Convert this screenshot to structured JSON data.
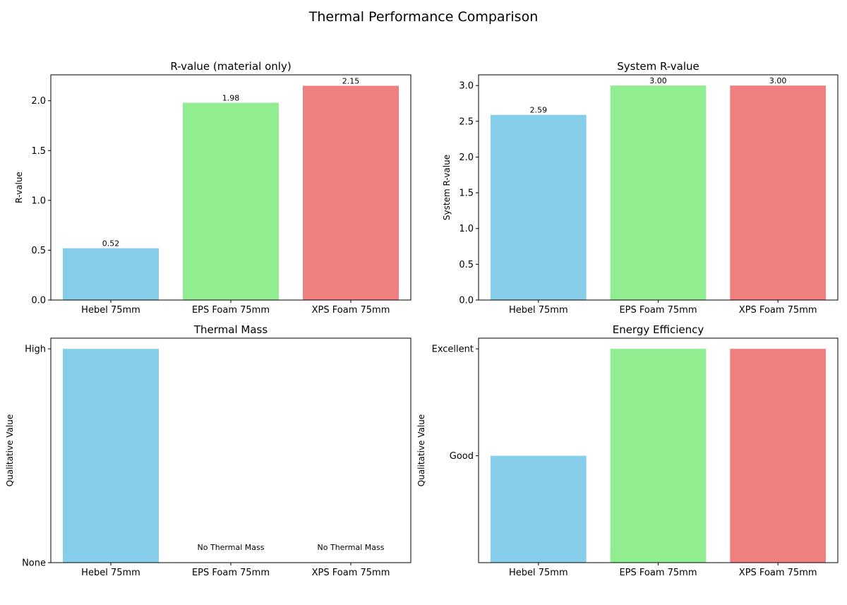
{
  "figure_title": "Thermal Performance Comparison",
  "colors": {
    "hebel": "#87CEEB",
    "eps": "#90EE90",
    "xps": "#F08080",
    "axis": "#000000"
  },
  "chart_data": [
    {
      "type": "bar",
      "title": "R-value (material only)",
      "xlabel": "",
      "ylabel": "R-value",
      "categories": [
        "Hebel 75mm",
        "EPS Foam 75mm",
        "XPS Foam 75mm"
      ],
      "values": [
        0.52,
        1.98,
        2.15
      ],
      "value_labels": [
        "0.52",
        "1.98",
        "2.15"
      ],
      "ylim": [
        0,
        2.26
      ],
      "yticks": [
        0.0,
        0.5,
        1.0,
        1.5,
        2.0
      ],
      "ytick_labels": [
        "0.0",
        "0.5",
        "1.0",
        "1.5",
        "2.0"
      ],
      "bar_colors": [
        "#87CEEB",
        "#90EE90",
        "#F08080"
      ],
      "grid": false,
      "legend": "none"
    },
    {
      "type": "bar",
      "title": "System R-value",
      "xlabel": "",
      "ylabel": "System R-value",
      "categories": [
        "Hebel 75mm",
        "EPS Foam 75mm",
        "XPS Foam 75mm"
      ],
      "values": [
        2.59,
        3.0,
        3.0
      ],
      "value_labels": [
        "2.59",
        "3.00",
        "3.00"
      ],
      "ylim": [
        0,
        3.15
      ],
      "yticks": [
        0.0,
        0.5,
        1.0,
        1.5,
        2.0,
        2.5,
        3.0
      ],
      "ytick_labels": [
        "0.0",
        "0.5",
        "1.0",
        "1.5",
        "2.0",
        "2.5",
        "3.0"
      ],
      "bar_colors": [
        "#87CEEB",
        "#90EE90",
        "#F08080"
      ],
      "grid": false,
      "legend": "none"
    },
    {
      "type": "bar",
      "title": "Thermal Mass",
      "xlabel": "",
      "ylabel": "Qualitative Value",
      "categories": [
        "Hebel 75mm",
        "EPS Foam 75mm",
        "XPS Foam 75mm"
      ],
      "values": [
        2,
        0,
        0
      ],
      "value_labels": [
        "",
        "No Thermal Mass",
        "No Thermal Mass"
      ],
      "ylim": [
        0,
        2.1
      ],
      "yticks": [
        0,
        2
      ],
      "ytick_labels": [
        "None",
        "High"
      ],
      "bar_colors": [
        "#87CEEB",
        "#90EE90",
        "#F08080"
      ],
      "grid": false,
      "legend": "none"
    },
    {
      "type": "bar",
      "title": "Energy Efficiency",
      "xlabel": "",
      "ylabel": "Qualitative Value",
      "categories": [
        "Hebel 75mm",
        "EPS Foam 75mm",
        "XPS Foam 75mm"
      ],
      "values": [
        2,
        3,
        3
      ],
      "value_labels": [
        "",
        "",
        ""
      ],
      "ylim": [
        1,
        3.1
      ],
      "yticks": [
        2,
        3
      ],
      "ytick_labels": [
        "Good",
        "Excellent"
      ],
      "bar_colors": [
        "#87CEEB",
        "#90EE90",
        "#F08080"
      ],
      "grid": false,
      "legend": "none"
    }
  ]
}
